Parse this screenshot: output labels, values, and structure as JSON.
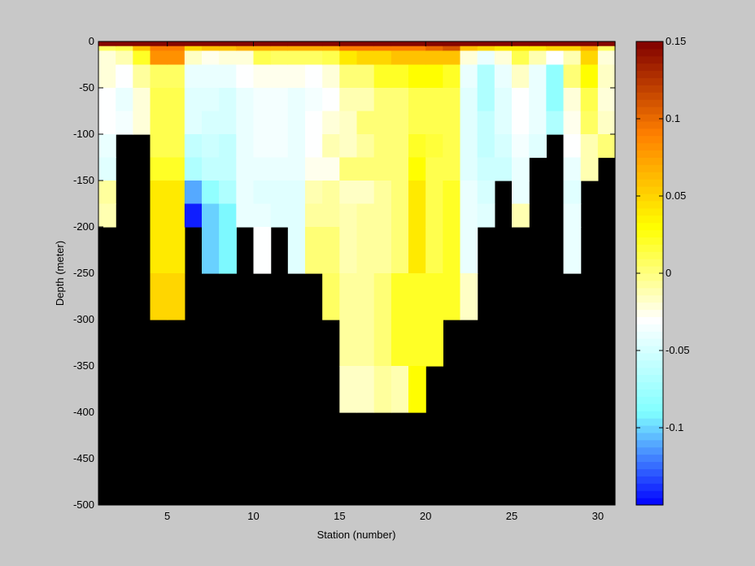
{
  "chart_data": {
    "type": "heatmap",
    "title": "",
    "xlabel": "Station (number)",
    "ylabel": "Depth (meter)",
    "xlim": [
      1,
      31
    ],
    "ylim": [
      -500,
      0
    ],
    "x_ticks": [
      5,
      10,
      15,
      20,
      25,
      30
    ],
    "y_ticks": [
      0,
      -50,
      -100,
      -150,
      -200,
      -250,
      -300,
      -350,
      -400,
      -450,
      -500
    ],
    "mask_color": "#000000",
    "colorbar": {
      "clim": [
        -0.15,
        0.15
      ],
      "ticks": [
        0.15,
        0.1,
        0.05,
        0,
        -0.05,
        -0.1
      ],
      "tick_labels": [
        "0.15",
        "0.1",
        "0.05",
        "0",
        "-0.05",
        "-0.1"
      ],
      "levels": 64,
      "colors": [
        "#0000ff",
        "#80ffff",
        "#ffffff",
        "#ffff00",
        "#ff8000",
        "#800000"
      ]
    },
    "stations": [
      1,
      2,
      3,
      4,
      5,
      6,
      7,
      8,
      9,
      10,
      11,
      12,
      13,
      14,
      15,
      16,
      17,
      18,
      19,
      20,
      21,
      22,
      23,
      24,
      25,
      26,
      27,
      28,
      29,
      30
    ],
    "depth_bins_top": [
      0,
      -5,
      -10,
      -25,
      -50,
      -75,
      -100,
      -125,
      -150,
      -175,
      -200,
      -250,
      -300,
      -350,
      -400
    ],
    "max_depth": [
      -200,
      -100,
      -100,
      -300,
      -300,
      -200,
      -250,
      -250,
      -200,
      -250,
      -200,
      -250,
      -250,
      -300,
      -400,
      -400,
      -400,
      -400,
      -400,
      -400,
      -300,
      -300,
      -200,
      -150,
      -200,
      -125,
      -100,
      -250,
      -150,
      -125
    ],
    "values": [
      [
        0.15,
        0.15,
        0.15,
        0.15,
        0.15,
        0.15,
        0.15,
        0.15,
        0.15,
        0.15,
        0.15,
        0.15,
        0.15,
        0.15,
        0.15,
        0.15,
        0.15,
        0.15,
        0.15,
        0.15,
        0.15,
        0.15,
        0.15,
        0.15,
        0.15,
        0.15,
        0.15,
        0.15,
        0.15,
        0.15
      ],
      [
        0.005,
        0.01,
        0.06,
        0.09,
        0.09,
        0.05,
        0.06,
        0.06,
        0.07,
        0.07,
        0.07,
        0.07,
        0.07,
        0.07,
        0.09,
        0.09,
        0.09,
        0.09,
        0.09,
        0.1,
        0.11,
        0.06,
        0.05,
        0.04,
        0.04,
        0.04,
        0.05,
        0.05,
        0.07,
        0.005
      ],
      [
        -0.02,
        -0.01,
        0.02,
        0.08,
        0.08,
        -0.015,
        -0.025,
        -0.02,
        -0.02,
        0.01,
        0.005,
        0.005,
        0.005,
        0.01,
        0.04,
        0.05,
        0.05,
        0.06,
        0.06,
        0.06,
        0.06,
        -0.02,
        -0.04,
        -0.02,
        0.01,
        -0.01,
        -0.03,
        -0.01,
        0.05,
        -0.02
      ],
      [
        -0.02,
        -0.03,
        -0.005,
        0.005,
        0.005,
        -0.04,
        -0.04,
        -0.04,
        -0.03,
        -0.025,
        -0.025,
        -0.025,
        -0.03,
        -0.02,
        0,
        0,
        0.02,
        0.02,
        0.03,
        0.03,
        0.02,
        -0.04,
        -0.07,
        -0.04,
        -0.015,
        -0.04,
        -0.08,
        0,
        0.03,
        -0.015
      ],
      [
        -0.03,
        -0.04,
        -0.02,
        0.01,
        0.01,
        -0.045,
        -0.045,
        -0.05,
        -0.04,
        -0.035,
        -0.035,
        -0.04,
        -0.035,
        -0.03,
        -0.01,
        -0.01,
        0,
        0,
        0.01,
        0.01,
        0.01,
        -0.045,
        -0.07,
        -0.045,
        -0.03,
        -0.04,
        -0.08,
        -0.02,
        0.01,
        -0.02
      ],
      [
        -0.03,
        -0.035,
        -0.02,
        0.01,
        0.01,
        -0.045,
        -0.05,
        -0.05,
        -0.04,
        -0.035,
        -0.035,
        -0.04,
        -0.03,
        -0.02,
        -0.015,
        0,
        0,
        0,
        0.01,
        0.01,
        0.01,
        -0.045,
        -0.06,
        -0.045,
        -0.03,
        -0.04,
        -0.07,
        -0.025,
        0.005,
        -0.015
      ],
      [
        -0.04,
        -0.035,
        -0.02,
        0.01,
        0.01,
        -0.06,
        -0.055,
        -0.06,
        -0.04,
        -0.035,
        -0.035,
        -0.04,
        -0.03,
        -0.01,
        -0.015,
        -0.005,
        0,
        0,
        0.02,
        0.015,
        0.01,
        -0.045,
        -0.06,
        -0.05,
        -0.035,
        -0.045,
        -0.06,
        -0.03,
        -0.01,
        0
      ],
      [
        -0.045,
        null,
        null,
        0.02,
        0.02,
        -0.07,
        -0.06,
        -0.06,
        -0.04,
        -0.04,
        -0.04,
        -0.04,
        -0.025,
        -0.025,
        0,
        0,
        0,
        0,
        0.03,
        0.01,
        0.01,
        -0.045,
        -0.055,
        -0.055,
        -0.04,
        -0.05,
        null,
        -0.04,
        -0.01,
        0.02
      ],
      [
        -0.005,
        null,
        null,
        0.04,
        0.04,
        -0.11,
        -0.08,
        -0.07,
        -0.04,
        -0.045,
        -0.045,
        -0.045,
        -0.01,
        -0.005,
        -0.015,
        -0.015,
        -0.005,
        0,
        0.04,
        0.01,
        0.02,
        -0.04,
        -0.05,
        -0.05,
        -0.04,
        -0.04,
        null,
        -0.045,
        -0.005,
        null
      ],
      [
        -0.01,
        null,
        null,
        0.04,
        0.04,
        -0.145,
        -0.1,
        -0.09,
        -0.04,
        -0.04,
        -0.045,
        -0.045,
        -0.005,
        -0.005,
        -0.01,
        -0.005,
        -0.005,
        0,
        0.04,
        0.01,
        0.02,
        -0.04,
        -0.045,
        -0.04,
        -0.01,
        -0.015,
        null,
        -0.04,
        -0.005,
        null
      ],
      [
        -0.01,
        null,
        null,
        0.04,
        0.04,
        -0.15,
        -0.1,
        -0.09,
        -0.04,
        -0.03,
        -0.045,
        -0.045,
        0,
        0,
        -0.01,
        -0.005,
        -0.005,
        0,
        0.04,
        0.01,
        0.02,
        -0.04,
        -0.045,
        null,
        -0.01,
        null,
        null,
        -0.04,
        -0.005,
        null
      ],
      [
        null,
        null,
        null,
        0.05,
        0.05,
        -0.07,
        -0.07,
        null,
        -0.045,
        null,
        -0.08,
        -0.08,
        0.005,
        0.005,
        -0.005,
        -0.005,
        0,
        0.02,
        0.02,
        0.02,
        0.02,
        -0.015,
        null,
        null,
        null,
        null,
        null,
        0.01,
        null,
        null
      ],
      [
        null,
        null,
        null,
        0.05,
        0.05,
        null,
        null,
        null,
        null,
        null,
        null,
        null,
        -0.02,
        -0.015,
        -0.005,
        -0.005,
        0,
        0.02,
        0.02,
        0.02,
        0.02,
        -0.02,
        null,
        null,
        null,
        null,
        null,
        null,
        null,
        null
      ],
      [
        null,
        null,
        null,
        null,
        null,
        null,
        null,
        null,
        null,
        null,
        null,
        null,
        null,
        null,
        -0.015,
        -0.015,
        -0.005,
        -0.01,
        0.03,
        null,
        null,
        null,
        null,
        null,
        null,
        null,
        null,
        null,
        null,
        null
      ],
      [
        null,
        null,
        null,
        null,
        null,
        null,
        null,
        null,
        null,
        null,
        null,
        null,
        null,
        null,
        null,
        null,
        null,
        null,
        null,
        null,
        null,
        null,
        null,
        null,
        null,
        null,
        null,
        null,
        null,
        null
      ]
    ]
  }
}
